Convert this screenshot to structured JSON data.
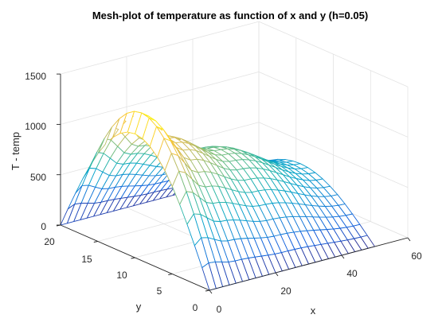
{
  "chart_data": {
    "type": "mesh",
    "title": "Mesh-plot of temperature as function of x and y (h=0.05)",
    "xlabel": "x",
    "ylabel": "y",
    "zlabel": "T - temp",
    "xlim": [
      0,
      60
    ],
    "ylim": [
      0,
      20
    ],
    "zlim": [
      0,
      1500
    ],
    "x_ticks": [
      0,
      20,
      40,
      60
    ],
    "y_ticks": [
      0,
      5,
      10,
      15,
      20
    ],
    "z_ticks": [
      0,
      500,
      1000,
      1500
    ],
    "grid": true,
    "colormap": "parula",
    "surface": {
      "x_range": [
        0,
        50
      ],
      "y_range": [
        0,
        20
      ],
      "profile_across_y": "T(x,y) = T_max(x) * sin(pi * y / 20)",
      "peak_along_x": [
        {
          "x": 0,
          "T_max": 1230
        },
        {
          "x": 2,
          "T_max": 1420
        },
        {
          "x": 10,
          "T_max": 1100
        },
        {
          "x": 25,
          "T_max": 850
        },
        {
          "x": 50,
          "T_max": 500
        }
      ]
    },
    "colors": {
      "parula": [
        "#352a87",
        "#0f5cdd",
        "#1481d6",
        "#06a4ca",
        "#2eb7a4",
        "#87bf77",
        "#d1bb59",
        "#fec832",
        "#f9fb0e"
      ]
    }
  }
}
